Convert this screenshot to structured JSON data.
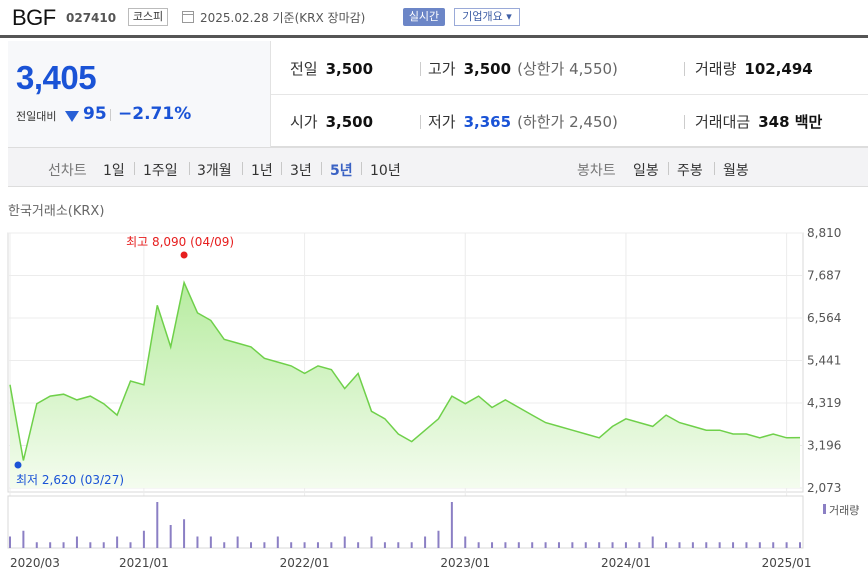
{
  "header": {
    "name": "BGF",
    "code": "027410",
    "market": "코스피",
    "date": "2025.02.28 기준(KRX 장마감)",
    "realtime": "실시간",
    "company": "기업개요 ▾"
  },
  "price": {
    "current": "3,405",
    "change_label": "전일대비",
    "change": "95",
    "change_pct": "−2.71%",
    "prev_label": "전일",
    "prev": "3,500",
    "high_label": "고가",
    "high": "3,500",
    "upper": "(상한가 4,550)",
    "volume_label": "거래량",
    "volume": "102,494",
    "open_label": "시가",
    "open": "3,500",
    "low_label": "저가",
    "low": "3,365",
    "lower": "(하한가 2,450)",
    "amount_label": "거래대금",
    "amount": "348 백만"
  },
  "periods": {
    "label": "선차트",
    "items": [
      "1일",
      "1주일",
      "3개월",
      "1년",
      "3년",
      "5년",
      "10년"
    ],
    "active": "5년",
    "candle_label": "봉차트",
    "candles": [
      "일봉",
      "주봉",
      "월봉"
    ]
  },
  "source": "한국거래소(KRX)",
  "colors": {
    "line": "#6fd04a",
    "fill": "#d8f4cc",
    "up": "#e61e1e",
    "down": "#1a53d6",
    "volume": "#8b7fc4"
  },
  "chart_data": {
    "type": "area",
    "ylim": [
      2073,
      8810
    ],
    "yticks": [
      "8,810",
      "7,687",
      "6,564",
      "5,441",
      "4,319",
      "3,196",
      "2,073"
    ],
    "xticks": [
      "2020/03",
      "2021/01",
      "2022/01",
      "2023/01",
      "2024/01",
      "2025/01"
    ],
    "max_label": "최고 8,090 (04/09)",
    "min_label": "최저 2,620 (03/27)",
    "volume_label": "거래량",
    "grid": true,
    "x": [
      "2020/03",
      "2020/04",
      "2020/05",
      "2020/06",
      "2020/07",
      "2020/08",
      "2020/09",
      "2020/10",
      "2020/11",
      "2020/12",
      "2021/01",
      "2021/02",
      "2021/03",
      "2021/04",
      "2021/05",
      "2021/06",
      "2021/07",
      "2021/08",
      "2021/09",
      "2021/10",
      "2021/11",
      "2021/12",
      "2022/01",
      "2022/02",
      "2022/03",
      "2022/04",
      "2022/05",
      "2022/06",
      "2022/07",
      "2022/08",
      "2022/09",
      "2022/10",
      "2022/11",
      "2022/12",
      "2023/01",
      "2023/02",
      "2023/03",
      "2023/04",
      "2023/05",
      "2023/06",
      "2023/07",
      "2023/08",
      "2023/09",
      "2023/10",
      "2023/11",
      "2023/12",
      "2024/01",
      "2024/02",
      "2024/03",
      "2024/04",
      "2024/05",
      "2024/06",
      "2024/07",
      "2024/08",
      "2024/09",
      "2024/10",
      "2024/11",
      "2024/12",
      "2025/01",
      "2025/02"
    ],
    "values": [
      4800,
      2800,
      4300,
      4500,
      4550,
      4400,
      4500,
      4300,
      4000,
      4900,
      4800,
      6900,
      5800,
      7500,
      6700,
      6500,
      6000,
      5900,
      5800,
      5500,
      5400,
      5300,
      5100,
      5300,
      5200,
      4700,
      5100,
      4100,
      3900,
      3500,
      3300,
      3600,
      3900,
      4500,
      4300,
      4500,
      4200,
      4400,
      4200,
      4000,
      3800,
      3700,
      3600,
      3500,
      3400,
      3700,
      3900,
      3800,
      3700,
      4000,
      3800,
      3700,
      3600,
      3600,
      3500,
      3500,
      3400,
      3500,
      3400,
      3405
    ],
    "volume": [
      2,
      3,
      1,
      1,
      1,
      2,
      1,
      1,
      2,
      1,
      3,
      8,
      4,
      5,
      2,
      2,
      1,
      2,
      1,
      1,
      2,
      1,
      1,
      1,
      1,
      2,
      1,
      2,
      1,
      1,
      1,
      2,
      3,
      8,
      2,
      1,
      1,
      1,
      1,
      1,
      1,
      1,
      1,
      1,
      1,
      1,
      1,
      1,
      2,
      1,
      1,
      1,
      1,
      1,
      1,
      1,
      1,
      1,
      1,
      1
    ]
  }
}
